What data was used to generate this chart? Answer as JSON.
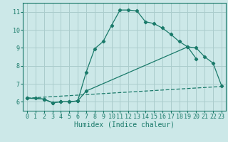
{
  "bg_color": "#cce8e8",
  "grid_color": "#aacccc",
  "line_color": "#1a7a6a",
  "xlabel": "Humidex (Indice chaleur)",
  "xlabel_fontsize": 7,
  "xlim": [
    -0.5,
    23.5
  ],
  "ylim": [
    5.5,
    11.5
  ],
  "xticks": [
    0,
    1,
    2,
    3,
    4,
    5,
    6,
    7,
    8,
    9,
    10,
    11,
    12,
    13,
    14,
    15,
    16,
    17,
    18,
    19,
    20,
    21,
    22,
    23
  ],
  "yticks": [
    6,
    7,
    8,
    9,
    10,
    11
  ],
  "tick_fontsize": 6,
  "line1_x": [
    0,
    1,
    2,
    3,
    4,
    5,
    6,
    7,
    8,
    9,
    10,
    11,
    12,
    13,
    14,
    15,
    16,
    17,
    18,
    19,
    20
  ],
  "line1_y": [
    6.2,
    6.2,
    6.15,
    5.95,
    6.0,
    6.0,
    6.05,
    7.65,
    8.95,
    9.35,
    10.25,
    11.1,
    11.1,
    11.05,
    10.45,
    10.35,
    10.1,
    9.75,
    9.35,
    9.05,
    8.4
  ],
  "line2_x": [
    0,
    2,
    3,
    4,
    5,
    6,
    7,
    19,
    20,
    21,
    22,
    23
  ],
  "line2_y": [
    6.2,
    6.15,
    5.95,
    6.0,
    6.0,
    6.05,
    6.6,
    9.05,
    9.0,
    8.5,
    8.15,
    6.9
  ],
  "line3_x": [
    0,
    23
  ],
  "line3_y": [
    6.2,
    6.85
  ]
}
